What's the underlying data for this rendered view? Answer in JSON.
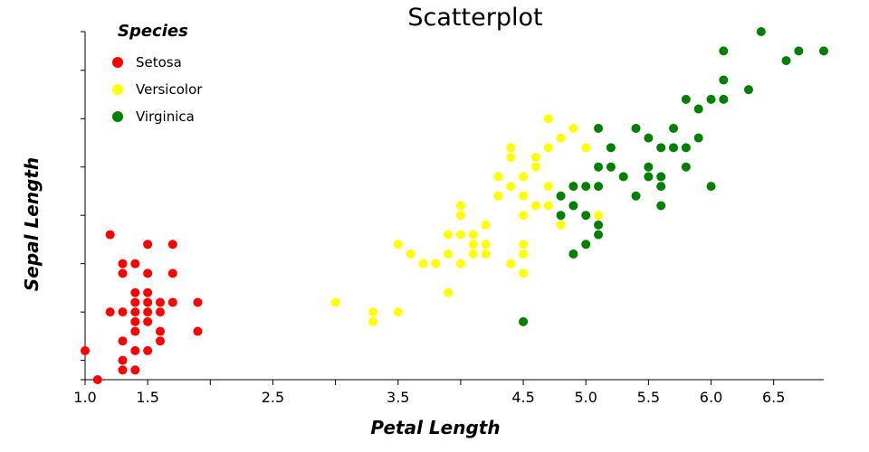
{
  "chart_data": {
    "type": "scatter",
    "title": "Scatterplot",
    "xlabel": "Petal Length",
    "ylabel": "Sepal Length",
    "xlim": [
      1.0,
      6.9
    ],
    "ylim": [
      4.3,
      7.9
    ],
    "x_ticks": [
      1.0,
      1.5,
      2.0,
      2.5,
      3.0,
      3.5,
      4.0,
      4.5,
      5.0,
      5.5,
      6.0,
      6.5
    ],
    "x_tick_labels": [
      "1.0",
      "1.5",
      "",
      "2.5",
      "",
      "3.5",
      "",
      "4.5",
      "5.0",
      "5.5",
      "6.0",
      "6.5"
    ],
    "y_ticks": [
      4.3,
      4.5,
      5.0,
      5.5,
      6.0,
      6.5,
      7.0,
      7.5,
      7.9
    ],
    "y_tick_labels_visible": false,
    "grid": false,
    "legend": {
      "title": "Species",
      "position": "top-left"
    },
    "series": [
      {
        "name": "Setosa",
        "color": "#ff0000",
        "points": [
          [
            1.0,
            4.6
          ],
          [
            1.1,
            4.3
          ],
          [
            1.2,
            5.8
          ],
          [
            1.2,
            5.0
          ],
          [
            1.3,
            5.5
          ],
          [
            1.3,
            5.4
          ],
          [
            1.3,
            5.0
          ],
          [
            1.3,
            4.7
          ],
          [
            1.3,
            4.5
          ],
          [
            1.3,
            4.4
          ],
          [
            1.4,
            5.5
          ],
          [
            1.4,
            5.2
          ],
          [
            1.4,
            5.1
          ],
          [
            1.4,
            5.0
          ],
          [
            1.4,
            4.9
          ],
          [
            1.4,
            4.8
          ],
          [
            1.4,
            4.6
          ],
          [
            1.4,
            4.4
          ],
          [
            1.5,
            5.7
          ],
          [
            1.5,
            5.4
          ],
          [
            1.5,
            5.2
          ],
          [
            1.5,
            5.1
          ],
          [
            1.5,
            5.0
          ],
          [
            1.5,
            4.9
          ],
          [
            1.5,
            4.6
          ],
          [
            1.6,
            5.1
          ],
          [
            1.6,
            5.0
          ],
          [
            1.6,
            4.8
          ],
          [
            1.6,
            4.7
          ],
          [
            1.7,
            5.7
          ],
          [
            1.7,
            5.4
          ],
          [
            1.7,
            5.1
          ],
          [
            1.9,
            5.1
          ],
          [
            1.9,
            4.8
          ]
        ]
      },
      {
        "name": "Versicolor",
        "color": "#ffff00",
        "points": [
          [
            3.0,
            5.1
          ],
          [
            3.3,
            5.0
          ],
          [
            3.3,
            4.9
          ],
          [
            3.5,
            5.7
          ],
          [
            3.5,
            5.0
          ],
          [
            3.6,
            5.6
          ],
          [
            3.7,
            5.5
          ],
          [
            3.8,
            5.5
          ],
          [
            3.9,
            5.8
          ],
          [
            3.9,
            5.6
          ],
          [
            3.9,
            5.2
          ],
          [
            4.0,
            6.1
          ],
          [
            4.0,
            6.0
          ],
          [
            4.0,
            5.8
          ],
          [
            4.0,
            5.5
          ],
          [
            4.1,
            5.8
          ],
          [
            4.1,
            5.7
          ],
          [
            4.1,
            5.6
          ],
          [
            4.2,
            5.9
          ],
          [
            4.2,
            5.7
          ],
          [
            4.2,
            5.6
          ],
          [
            4.3,
            6.4
          ],
          [
            4.3,
            6.2
          ],
          [
            4.4,
            6.7
          ],
          [
            4.4,
            6.6
          ],
          [
            4.4,
            6.3
          ],
          [
            4.4,
            5.5
          ],
          [
            4.5,
            6.4
          ],
          [
            4.5,
            6.2
          ],
          [
            4.5,
            6.0
          ],
          [
            4.5,
            5.7
          ],
          [
            4.5,
            5.6
          ],
          [
            4.5,
            5.4
          ],
          [
            4.6,
            6.6
          ],
          [
            4.6,
            6.5
          ],
          [
            4.6,
            6.1
          ],
          [
            4.7,
            7.0
          ],
          [
            4.7,
            6.7
          ],
          [
            4.7,
            6.3
          ],
          [
            4.7,
            6.1
          ],
          [
            4.8,
            6.8
          ],
          [
            4.8,
            5.9
          ],
          [
            4.9,
            6.9
          ],
          [
            4.9,
            6.3
          ],
          [
            5.0,
            6.7
          ],
          [
            5.1,
            6.0
          ]
        ]
      },
      {
        "name": "Virginica",
        "color": "#008000",
        "points": [
          [
            4.5,
            4.9
          ],
          [
            4.8,
            6.2
          ],
          [
            4.8,
            6.0
          ],
          [
            4.9,
            6.3
          ],
          [
            4.9,
            6.1
          ],
          [
            4.9,
            5.6
          ],
          [
            5.0,
            6.3
          ],
          [
            5.0,
            6.0
          ],
          [
            5.0,
            5.7
          ],
          [
            5.1,
            6.9
          ],
          [
            5.1,
            6.5
          ],
          [
            5.1,
            6.3
          ],
          [
            5.1,
            5.9
          ],
          [
            5.1,
            5.8
          ],
          [
            5.2,
            6.7
          ],
          [
            5.2,
            6.5
          ],
          [
            5.3,
            6.4
          ],
          [
            5.4,
            6.9
          ],
          [
            5.4,
            6.2
          ],
          [
            5.5,
            6.8
          ],
          [
            5.5,
            6.5
          ],
          [
            5.5,
            6.4
          ],
          [
            5.6,
            6.7
          ],
          [
            5.6,
            6.4
          ],
          [
            5.6,
            6.3
          ],
          [
            5.6,
            6.1
          ],
          [
            5.7,
            6.9
          ],
          [
            5.7,
            6.7
          ],
          [
            5.8,
            7.2
          ],
          [
            5.8,
            6.7
          ],
          [
            5.8,
            6.5
          ],
          [
            5.9,
            7.1
          ],
          [
            5.9,
            6.8
          ],
          [
            6.0,
            7.2
          ],
          [
            6.0,
            6.3
          ],
          [
            6.1,
            7.7
          ],
          [
            6.1,
            7.4
          ],
          [
            6.1,
            7.2
          ],
          [
            6.3,
            7.3
          ],
          [
            6.4,
            7.9
          ],
          [
            6.6,
            7.6
          ],
          [
            6.7,
            7.7
          ],
          [
            6.9,
            7.7
          ]
        ]
      }
    ]
  }
}
